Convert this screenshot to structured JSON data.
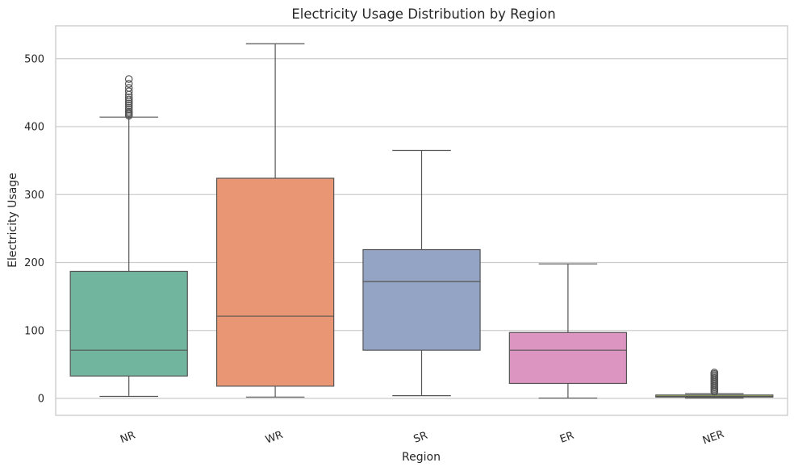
{
  "chart_data": {
    "type": "box",
    "title": "Electricity Usage Distribution by Region",
    "xlabel": "Region",
    "ylabel": "Electricity Usage",
    "ylim": [
      -25,
      550
    ],
    "yticks": [
      0,
      100,
      200,
      300,
      400,
      500
    ],
    "grid": "y",
    "categories": [
      "NR",
      "WR",
      "SR",
      "ER",
      "NER"
    ],
    "colors": {
      "NR": "#72b59f",
      "WR": "#e89673",
      "SR": "#94a4c4",
      "ER": "#dc95c1",
      "NER": "#a9cf5c",
      "edge": "#555555",
      "grid": "#cccccc",
      "spine": "#cccccc"
    },
    "boxes": [
      {
        "category": "NR",
        "whisker_low": 3,
        "q1": 33,
        "median": 71,
        "q3": 187,
        "whisker_high": 414,
        "outliers": [
          416,
          418,
          420,
          422,
          425,
          428,
          431,
          434,
          437,
          440,
          443,
          447,
          452,
          457,
          463,
          470
        ]
      },
      {
        "category": "WR",
        "whisker_low": 2,
        "q1": 18,
        "median": 121,
        "q3": 324,
        "whisker_high": 522,
        "outliers": []
      },
      {
        "category": "SR",
        "whisker_low": 4,
        "q1": 71,
        "median": 172,
        "q3": 219,
        "whisker_high": 365,
        "outliers": []
      },
      {
        "category": "ER",
        "whisker_low": 0.5,
        "q1": 22,
        "median": 71,
        "q3": 97,
        "whisker_high": 198,
        "outliers": []
      },
      {
        "category": "NER",
        "whisker_low": 0.5,
        "q1": 2,
        "median": 3,
        "q3": 5,
        "whisker_high": 7,
        "outliers": [
          10,
          12,
          14,
          16,
          18,
          20,
          22,
          24,
          26,
          28,
          30,
          32,
          34,
          36,
          38
        ]
      }
    ]
  }
}
